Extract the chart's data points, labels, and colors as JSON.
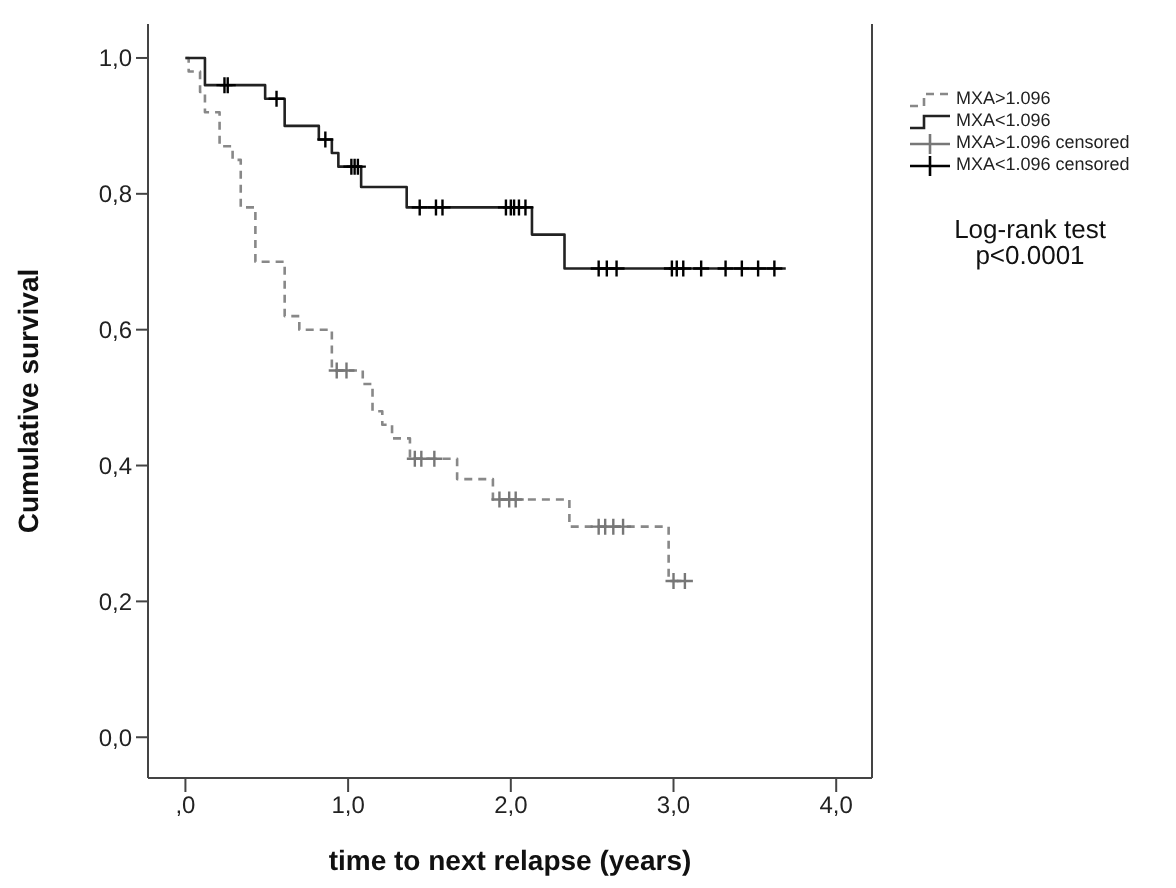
{
  "chart_data": {
    "type": "step",
    "xlabel": "time to next relapse (years)",
    "ylabel": "Cumulative survival",
    "xlim": [
      -0.23,
      4.22
    ],
    "ylim": [
      -0.06,
      1.05
    ],
    "xticks": [
      {
        "value": 0,
        "label": ",0"
      },
      {
        "value": 1,
        "label": "1,0"
      },
      {
        "value": 2,
        "label": "2,0"
      },
      {
        "value": 3,
        "label": "3,0"
      },
      {
        "value": 4,
        "label": "4,0"
      }
    ],
    "yticks": [
      {
        "value": 0,
        "label": "0,0"
      },
      {
        "value": 0.2,
        "label": "0,2"
      },
      {
        "value": 0.4,
        "label": "0,4"
      },
      {
        "value": 0.6,
        "label": "0,6"
      },
      {
        "value": 0.8,
        "label": "0,8"
      },
      {
        "value": 1,
        "label": "1,0"
      }
    ],
    "legend": "right",
    "annotations": [
      "Log-rank test\np<0.0001"
    ],
    "series": [
      {
        "name": "MXA>1.096",
        "color": "#888888",
        "line_style": "dashed",
        "marker": "none",
        "x": [
          0,
          0.02,
          0.09,
          0.12,
          0.21,
          0.29,
          0.34,
          0.43,
          0.61,
          0.7,
          0.9,
          1.09,
          1.15,
          1.21,
          1.27,
          1.38,
          1.67,
          1.89,
          2.36,
          2.97,
          3.07
        ],
        "values": [
          1,
          0.98,
          0.95,
          0.92,
          0.87,
          0.85,
          0.78,
          0.7,
          0.62,
          0.6,
          0.54,
          0.52,
          0.48,
          0.46,
          0.44,
          0.41,
          0.38,
          0.35,
          0.31,
          0.23,
          0.23
        ]
      },
      {
        "name": "MXA<1.096",
        "color": "#222222",
        "line_style": "solid",
        "marker": "none",
        "x": [
          0,
          0.12,
          0.49,
          0.61,
          0.82,
          0.9,
          0.94,
          1.08,
          1.36,
          2.13,
          2.33,
          3.69
        ],
        "values": [
          1,
          0.96,
          0.94,
          0.9,
          0.88,
          0.86,
          0.84,
          0.81,
          0.78,
          0.74,
          0.69,
          0.69
        ]
      },
      {
        "name": "MXA>1.096 censored",
        "type": "scatter",
        "color": "#777777",
        "marker": "cross",
        "x": [
          0.93,
          0.99,
          1.41,
          1.45,
          1.53,
          1.93,
          1.99,
          2.03,
          2.54,
          2.58,
          2.63,
          2.69,
          3.0,
          3.07
        ],
        "values": [
          0.54,
          0.54,
          0.41,
          0.41,
          0.41,
          0.35,
          0.35,
          0.35,
          0.31,
          0.31,
          0.31,
          0.31,
          0.23,
          0.23
        ]
      },
      {
        "name": "MXA<1.096 censored",
        "type": "scatter",
        "color": "#000000",
        "marker": "cross",
        "x": [
          0.24,
          0.26,
          0.56,
          0.86,
          1.02,
          1.04,
          1.06,
          1.44,
          1.54,
          1.58,
          1.97,
          2.0,
          2.02,
          2.05,
          2.09,
          2.54,
          2.59,
          2.65,
          2.99,
          3.02,
          3.06,
          3.17,
          3.32,
          3.42,
          3.52,
          3.62
        ],
        "values": [
          0.96,
          0.96,
          0.94,
          0.88,
          0.84,
          0.84,
          0.84,
          0.78,
          0.78,
          0.78,
          0.78,
          0.78,
          0.78,
          0.78,
          0.78,
          0.69,
          0.69,
          0.69,
          0.69,
          0.69,
          0.69,
          0.69,
          0.69,
          0.69,
          0.69,
          0.69
        ]
      }
    ]
  }
}
